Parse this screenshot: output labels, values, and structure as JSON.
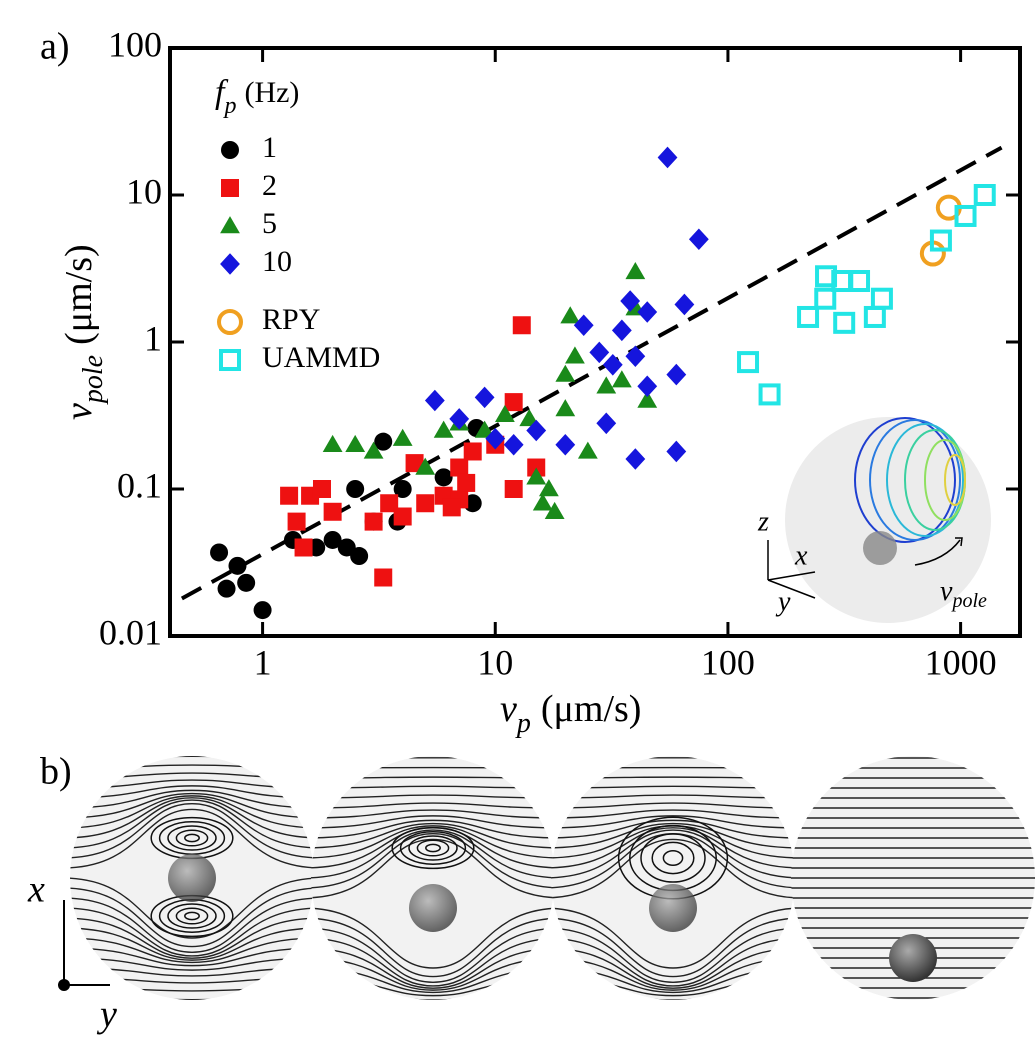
{
  "chart_data": {
    "type": "scatter",
    "panel_label": "a)",
    "x_label": {
      "symbol": "v",
      "subscript": "p",
      "unit": "(μm/s)"
    },
    "y_label": {
      "symbol": "v",
      "subscript": "pole",
      "unit": "(μm/s)"
    },
    "legend_title": {
      "symbol": "f",
      "subscript": "p",
      "unit": "(Hz)"
    },
    "xscale": "log",
    "yscale": "log",
    "xlim": [
      0.4,
      1800
    ],
    "ylim": [
      0.01,
      100
    ],
    "xticks": [
      1,
      10,
      100,
      1000
    ],
    "yticks": [
      0.01,
      0.1,
      1,
      10,
      100
    ],
    "legend": "upper left",
    "series": [
      {
        "name": "1",
        "color": "#000000",
        "marker": "circle",
        "x": [
          0.65,
          0.7,
          0.78,
          0.85,
          1.0,
          1.35,
          1.7,
          2.0,
          2.3,
          2.6,
          2.5,
          3.3,
          3.8,
          4.0,
          6,
          8,
          8.3,
          3.0
        ],
        "values": [
          0.037,
          0.021,
          0.03,
          0.023,
          0.015,
          0.045,
          0.04,
          0.045,
          0.04,
          0.035,
          0.1,
          0.21,
          0.06,
          0.1,
          0.12,
          0.08,
          0.26,
          0.06
        ]
      },
      {
        "name": "2",
        "color": "#ee1111",
        "marker": "square",
        "x": [
          1.3,
          1.4,
          1.5,
          1.6,
          1.8,
          2.0,
          3,
          3.3,
          3.5,
          4,
          4.5,
          5,
          6,
          7,
          7,
          7.5,
          8,
          10,
          12,
          12,
          13,
          15,
          6.5
        ],
        "values": [
          0.09,
          0.06,
          0.04,
          0.09,
          0.1,
          0.07,
          0.06,
          0.025,
          0.08,
          0.065,
          0.15,
          0.08,
          0.09,
          0.085,
          0.14,
          0.11,
          0.18,
          0.2,
          0.1,
          0.39,
          1.3,
          0.14,
          0.075
        ]
      },
      {
        "name": "5",
        "color": "#1a8a1a",
        "marker": "triangle",
        "x": [
          2,
          2.5,
          3,
          4,
          5,
          6,
          7,
          9,
          11,
          14,
          15,
          16,
          17,
          20,
          20,
          21,
          22,
          25,
          30,
          35,
          40,
          40,
          45,
          18
        ],
        "values": [
          0.2,
          0.2,
          0.18,
          0.22,
          0.14,
          0.25,
          0.28,
          0.25,
          0.32,
          0.3,
          0.12,
          0.08,
          0.1,
          0.35,
          0.6,
          1.5,
          0.8,
          0.18,
          0.5,
          0.55,
          3.0,
          1.7,
          0.4,
          0.07
        ]
      },
      {
        "name": "10",
        "color": "#1515dd",
        "marker": "diamond",
        "x": [
          5.5,
          7,
          9,
          10,
          12,
          15,
          20,
          24,
          28,
          32,
          35,
          38,
          40,
          40,
          45,
          45,
          55,
          60,
          60,
          65,
          75,
          30
        ],
        "values": [
          0.4,
          0.3,
          0.42,
          0.22,
          0.2,
          0.25,
          0.2,
          1.3,
          0.85,
          0.7,
          1.2,
          1.9,
          0.16,
          0.8,
          0.5,
          1.6,
          18,
          0.6,
          0.18,
          1.8,
          5.0,
          0.28
        ]
      },
      {
        "name": "RPY",
        "color": "#f0a020",
        "marker": "open-circle",
        "x": [
          760,
          890
        ],
        "values": [
          4.0,
          8.2
        ]
      },
      {
        "name": "UAMMD",
        "color": "#22e5e5",
        "marker": "open-square",
        "x": [
          122,
          151,
          221,
          262,
          310,
          366,
          316,
          428,
          459,
          264,
          823,
          1050,
          1270
        ],
        "values": [
          0.73,
          0.44,
          1.48,
          1.97,
          2.6,
          2.6,
          1.35,
          1.48,
          1.97,
          2.8,
          4.9,
          7.2,
          10
        ]
      }
    ],
    "fit": {
      "x": [
        0.45,
        1500
      ],
      "values": [
        0.018,
        21
      ]
    }
  },
  "inset": {
    "z": "z",
    "x": "x",
    "y": "y",
    "v": "v",
    "v_sub": "pole"
  },
  "panel_b": {
    "panel_label": "b)",
    "x": "x",
    "y": "y"
  }
}
